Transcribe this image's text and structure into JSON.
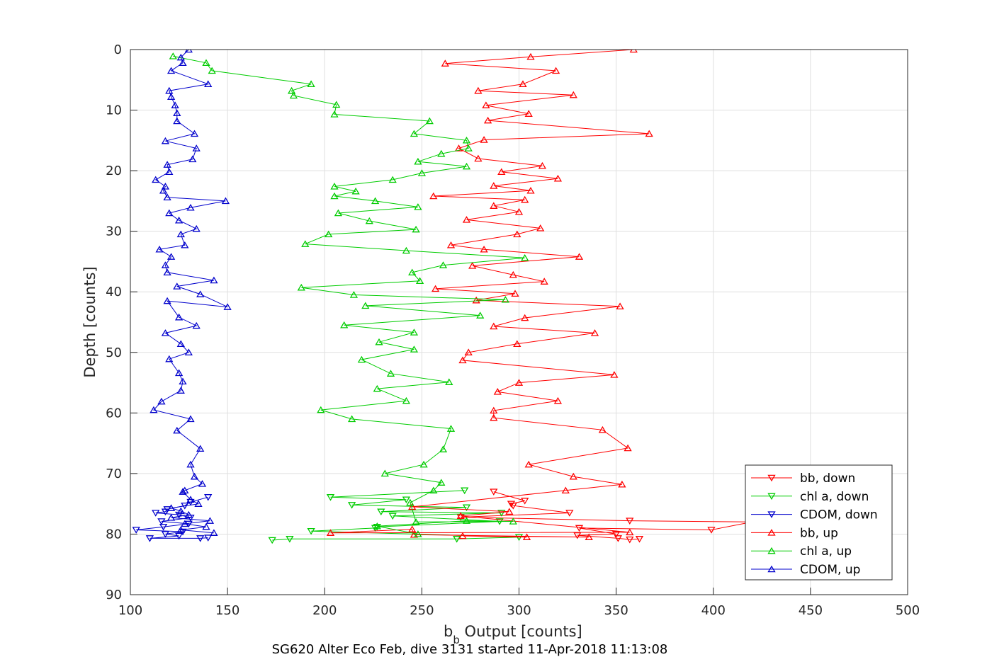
{
  "caption": "SG620 Alter Eco Feb, dive 3131 started 11-Apr-2018 11:13:08",
  "chart_data": {
    "type": "line",
    "xlabel_main": "b",
    "xlabel_sub": "b",
    "xlabel_rest": " Output [counts]",
    "ylabel": "Depth [counts]",
    "xlim": [
      100,
      500
    ],
    "ylim": [
      0,
      90
    ],
    "y_reversed": true,
    "grid": true,
    "x_ticks": [
      100,
      150,
      200,
      250,
      300,
      350,
      400,
      450,
      500
    ],
    "y_ticks": [
      0,
      10,
      20,
      30,
      40,
      50,
      60,
      70,
      80,
      90
    ],
    "legend_position": "bottom-right",
    "series": [
      {
        "name": "bb, down",
        "color": "#ff0000",
        "marker": "triangle-down",
        "points": [
          [
            287,
            73.0
          ],
          [
            303,
            74.5
          ],
          [
            296,
            75.0
          ],
          [
            297,
            75.3
          ],
          [
            326,
            76.5
          ],
          [
            270,
            77.2
          ],
          [
            357,
            77.8
          ],
          [
            420,
            78.0
          ],
          [
            399,
            79.3
          ],
          [
            331,
            79.0
          ],
          [
            350,
            80.0
          ],
          [
            330,
            80.2
          ],
          [
            351,
            80.7
          ],
          [
            357,
            80.9
          ],
          [
            362,
            80.8
          ]
        ]
      },
      {
        "name": "chl a, down",
        "color": "#00cc00",
        "marker": "triangle-down",
        "points": [
          [
            272,
            72.8
          ],
          [
            203,
            73.9
          ],
          [
            242,
            74.3
          ],
          [
            214,
            75.2
          ],
          [
            273,
            75.6
          ],
          [
            229,
            76.3
          ],
          [
            291,
            76.5
          ],
          [
            235,
            77.0
          ],
          [
            290,
            77.9
          ],
          [
            227,
            78.8
          ],
          [
            226,
            79.0
          ],
          [
            193,
            79.5
          ],
          [
            300,
            80.5
          ],
          [
            268,
            80.8
          ],
          [
            182,
            80.8
          ],
          [
            173,
            81.0
          ]
        ]
      },
      {
        "name": "CDOM, down",
        "color": "#0000cc",
        "marker": "triangle-down",
        "points": [
          [
            140,
            73.9
          ],
          [
            131,
            74.7
          ],
          [
            128,
            75.3
          ],
          [
            119,
            75.9
          ],
          [
            118,
            76.3
          ],
          [
            113,
            76.5
          ],
          [
            125,
            76.8
          ],
          [
            131,
            77.3
          ],
          [
            116,
            77.9
          ],
          [
            130,
            78.3
          ],
          [
            117,
            78.8
          ],
          [
            103,
            79.3
          ],
          [
            127,
            79.6
          ],
          [
            118,
            80.0
          ],
          [
            125,
            80.3
          ],
          [
            110,
            80.7
          ],
          [
            136,
            80.7
          ],
          [
            140,
            80.6
          ]
        ]
      },
      {
        "name": "bb, up",
        "color": "#ff0000",
        "marker": "triangle-up",
        "points": [
          [
            304,
            80.5
          ],
          [
            271,
            80.3
          ],
          [
            336,
            80.5
          ],
          [
            246,
            80.1
          ],
          [
            245,
            79.2
          ],
          [
            203,
            79.8
          ],
          [
            357,
            79.7
          ],
          [
            270,
            77.0
          ],
          [
            295,
            76.3
          ],
          [
            245,
            75.5
          ],
          [
            324,
            72.8
          ],
          [
            353,
            71.8
          ],
          [
            328,
            70.5
          ],
          [
            305,
            68.5
          ],
          [
            356,
            65.8
          ],
          [
            343,
            62.8
          ],
          [
            287,
            60.8
          ],
          [
            287,
            59.6
          ],
          [
            320,
            58.0
          ],
          [
            289,
            56.5
          ],
          [
            300,
            55.0
          ],
          [
            349,
            53.7
          ],
          [
            271,
            51.3
          ],
          [
            274,
            50.0
          ],
          [
            299,
            48.6
          ],
          [
            339,
            46.8
          ],
          [
            287,
            45.7
          ],
          [
            303,
            44.3
          ],
          [
            352,
            42.4
          ],
          [
            278,
            41.4
          ],
          [
            298,
            40.3
          ],
          [
            257,
            39.5
          ],
          [
            313,
            38.3
          ],
          [
            297,
            37.2
          ],
          [
            276,
            35.7
          ],
          [
            331,
            34.2
          ],
          [
            282,
            33.0
          ],
          [
            265,
            32.3
          ],
          [
            299,
            30.5
          ],
          [
            311,
            29.5
          ],
          [
            273,
            28.1
          ],
          [
            300,
            26.8
          ],
          [
            287,
            25.8
          ],
          [
            303,
            24.8
          ],
          [
            256,
            24.2
          ],
          [
            306,
            23.3
          ],
          [
            287,
            22.5
          ],
          [
            320,
            21.3
          ],
          [
            291,
            20.2
          ],
          [
            312,
            19.2
          ],
          [
            279,
            18.0
          ],
          [
            269,
            16.3
          ],
          [
            282,
            14.9
          ],
          [
            367,
            13.9
          ],
          [
            284,
            11.7
          ],
          [
            305,
            10.6
          ],
          [
            283,
            9.2
          ],
          [
            328,
            7.5
          ],
          [
            279,
            6.8
          ],
          [
            302,
            5.7
          ],
          [
            319,
            3.5
          ],
          [
            262,
            2.3
          ],
          [
            306,
            1.2
          ],
          [
            359,
            0.0
          ]
        ]
      },
      {
        "name": "chl a, up",
        "color": "#00cc00",
        "marker": "triangle-up",
        "points": [
          [
            248,
            80.0
          ],
          [
            227,
            78.7
          ],
          [
            273,
            77.8
          ],
          [
            297,
            77.9
          ],
          [
            247,
            78.0
          ],
          [
            244,
            74.8
          ],
          [
            256,
            72.8
          ],
          [
            260,
            71.5
          ],
          [
            231,
            70.0
          ],
          [
            251,
            68.5
          ],
          [
            261,
            66.0
          ],
          [
            265,
            62.6
          ],
          [
            214,
            61.0
          ],
          [
            198,
            59.5
          ],
          [
            242,
            58.0
          ],
          [
            227,
            56.0
          ],
          [
            264,
            54.9
          ],
          [
            234,
            53.5
          ],
          [
            219,
            51.2
          ],
          [
            246,
            49.5
          ],
          [
            228,
            48.3
          ],
          [
            246,
            46.7
          ],
          [
            210,
            45.5
          ],
          [
            280,
            43.9
          ],
          [
            221,
            42.3
          ],
          [
            293,
            41.3
          ],
          [
            215,
            40.5
          ],
          [
            188,
            39.3
          ],
          [
            249,
            38.2
          ],
          [
            245,
            36.8
          ],
          [
            261,
            35.6
          ],
          [
            303,
            34.4
          ],
          [
            242,
            33.2
          ],
          [
            190,
            32.1
          ],
          [
            202,
            30.5
          ],
          [
            247,
            29.7
          ],
          [
            223,
            28.3
          ],
          [
            207,
            27.0
          ],
          [
            248,
            26.0
          ],
          [
            226,
            25.0
          ],
          [
            205,
            24.2
          ],
          [
            216,
            23.4
          ],
          [
            205,
            22.6
          ],
          [
            235,
            21.5
          ],
          [
            250,
            20.4
          ],
          [
            273,
            19.3
          ],
          [
            248,
            18.5
          ],
          [
            260,
            17.2
          ],
          [
            274,
            16.3
          ],
          [
            273,
            15.0
          ],
          [
            246,
            13.9
          ],
          [
            254,
            11.8
          ],
          [
            205,
            10.7
          ],
          [
            206,
            9.1
          ],
          [
            184,
            7.6
          ],
          [
            183,
            6.8
          ],
          [
            193,
            5.7
          ],
          [
            142,
            3.5
          ],
          [
            139,
            2.2
          ],
          [
            122,
            1.1
          ]
        ]
      },
      {
        "name": "CDOM, up",
        "color": "#0000cc",
        "marker": "triangle-up",
        "points": [
          [
            143,
            79.8
          ],
          [
            126,
            79.3
          ],
          [
            139,
            78.8
          ],
          [
            128,
            78.3
          ],
          [
            141,
            77.8
          ],
          [
            121,
            77.3
          ],
          [
            130,
            76.8
          ],
          [
            126,
            76.2
          ],
          [
            121,
            75.7
          ],
          [
            135,
            75.0
          ],
          [
            131,
            74.3
          ],
          [
            127,
            73.0
          ],
          [
            128,
            72.8
          ],
          [
            137,
            71.7
          ],
          [
            133,
            70.5
          ],
          [
            131,
            68.5
          ],
          [
            136,
            65.9
          ],
          [
            124,
            62.9
          ],
          [
            131,
            61.0
          ],
          [
            112,
            59.5
          ],
          [
            116,
            58.1
          ],
          [
            126,
            56.3
          ],
          [
            127,
            54.8
          ],
          [
            125,
            53.4
          ],
          [
            120,
            51.1
          ],
          [
            130,
            50.0
          ],
          [
            126,
            48.6
          ],
          [
            118,
            46.8
          ],
          [
            134,
            45.6
          ],
          [
            125,
            44.2
          ],
          [
            119,
            41.5
          ],
          [
            150,
            42.5
          ],
          [
            136,
            40.4
          ],
          [
            124,
            39.1
          ],
          [
            143,
            38.1
          ],
          [
            119,
            36.8
          ],
          [
            118,
            35.6
          ],
          [
            121,
            34.2
          ],
          [
            115,
            33.0
          ],
          [
            128,
            32.3
          ],
          [
            126,
            30.5
          ],
          [
            134,
            29.6
          ],
          [
            125,
            28.2
          ],
          [
            120,
            27.0
          ],
          [
            131,
            26.1
          ],
          [
            149,
            25.0
          ],
          [
            119,
            24.4
          ],
          [
            117,
            23.3
          ],
          [
            118,
            22.6
          ],
          [
            113,
            21.5
          ],
          [
            120,
            20.2
          ],
          [
            119,
            19.0
          ],
          [
            132,
            18.1
          ],
          [
            134,
            16.3
          ],
          [
            118,
            15.1
          ],
          [
            133,
            13.9
          ],
          [
            124,
            11.8
          ],
          [
            124,
            10.5
          ],
          [
            123,
            9.2
          ],
          [
            121,
            7.8
          ],
          [
            120,
            6.8
          ],
          [
            140,
            5.7
          ],
          [
            121,
            3.5
          ],
          [
            127,
            2.2
          ],
          [
            126,
            1.3
          ],
          [
            130,
            0.0
          ]
        ]
      }
    ]
  }
}
